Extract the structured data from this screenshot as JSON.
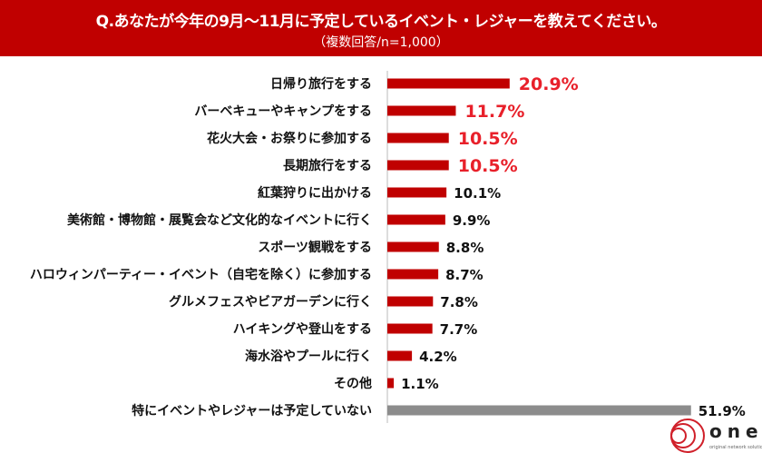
{
  "header": {
    "title": "Q.あなたが今年の9月～11月に予定しているイベント・レジャーを教えてください。",
    "subtitle": "（複数回答/n=1,000）"
  },
  "logo": {
    "text": "one",
    "tagline": "original network solution"
  },
  "colors": {
    "header": "#c00000",
    "bar": "#c00000",
    "bar_none": "#8c8c8c",
    "highlight_label": "#e8202a"
  },
  "chart_data": {
    "type": "bar",
    "orientation": "horizontal",
    "unit": "%",
    "xlim": [
      0,
      55
    ],
    "grid": false,
    "categories": [
      "日帰り旅行をする",
      "バーベキューやキャンプをする",
      "花火大会・お祭りに参加する",
      "長期旅行をする",
      "紅葉狩りに出かける",
      "美術館・博物館・展覧会など文化的なイベントに行く",
      "スポーツ観戦をする",
      "ハロウィンパーティー・イベント（自宅を除く）に参加する",
      "グルメフェスやビアガーデンに行く",
      "ハイキングや登山をする",
      "海水浴やプールに行く",
      "その他",
      "特にイベントやレジャーは予定していない"
    ],
    "values": [
      20.9,
      11.7,
      10.5,
      10.5,
      10.1,
      9.9,
      8.8,
      8.7,
      7.8,
      7.7,
      4.2,
      1.1,
      51.9
    ],
    "labels": [
      "20.9%",
      "11.7%",
      "10.5%",
      "10.5%",
      "10.1%",
      "9.9%",
      "8.8%",
      "8.7%",
      "7.8%",
      "7.7%",
      "4.2%",
      "1.1%",
      "51.9%"
    ],
    "highlighted_top": 4
  }
}
